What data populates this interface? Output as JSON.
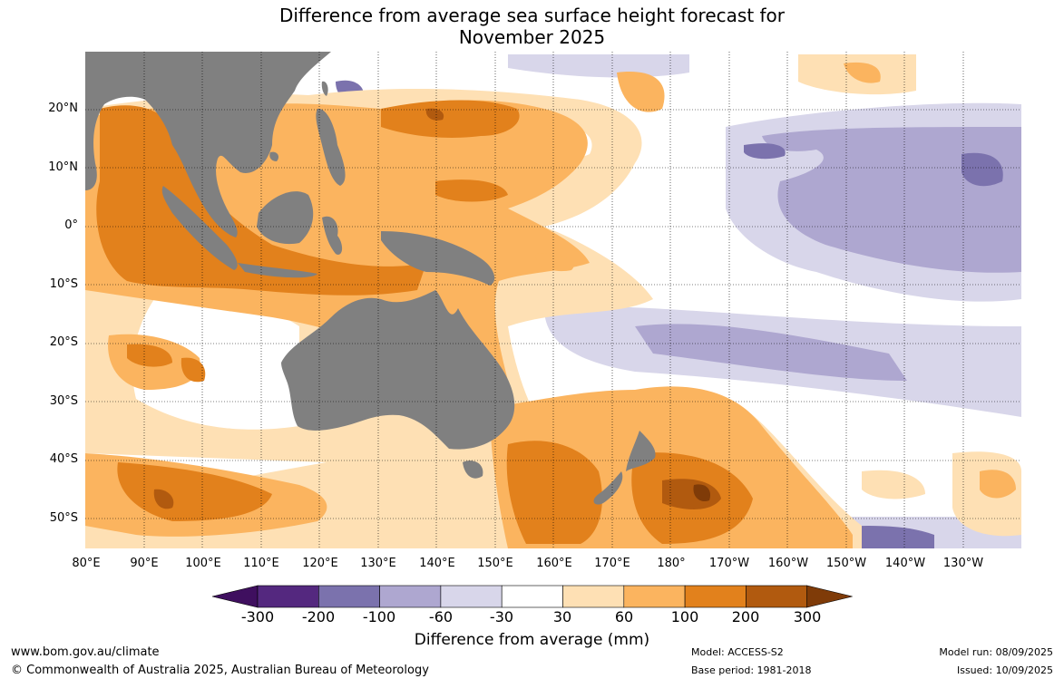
{
  "title_line1": "Difference from average sea surface height forecast for",
  "title_line2": "November 2025",
  "map": {
    "lat_labels": [
      "20°N",
      "10°N",
      "0°",
      "10°S",
      "20°S",
      "30°S",
      "40°S",
      "50°S"
    ],
    "lon_labels": [
      "80°E",
      "90°E",
      "100°E",
      "110°E",
      "120°E",
      "130°E",
      "140°E",
      "150°E",
      "160°E",
      "170°E",
      "180°",
      "170°W",
      "160°W",
      "150°W",
      "140°W",
      "130°W"
    ],
    "land_color": "#808080"
  },
  "colorbar": {
    "tick_labels": [
      "-300",
      "-200",
      "-100",
      "-60",
      "-30",
      "30",
      "60",
      "100",
      "200",
      "300"
    ],
    "colors": [
      "#3f0f5f",
      "#54287f",
      "#7b72ad",
      "#aea7d0",
      "#d8d6ea",
      "#ffffff",
      "#fee0b4",
      "#fbb45f",
      "#e2811c",
      "#b15a0f",
      "#7f3b08"
    ],
    "title": "Difference from average (mm)"
  },
  "footer": {
    "website": "www.bom.gov.au/climate",
    "copyright": "© Commonwealth of Australia 2025, Australian Bureau of Meteorology",
    "model": "Model: ACCESS-S2",
    "base_period": "Base period: 1981-2018",
    "model_run": "Model run: 08/09/2025",
    "issued": "Issued: 10/09/2025"
  }
}
